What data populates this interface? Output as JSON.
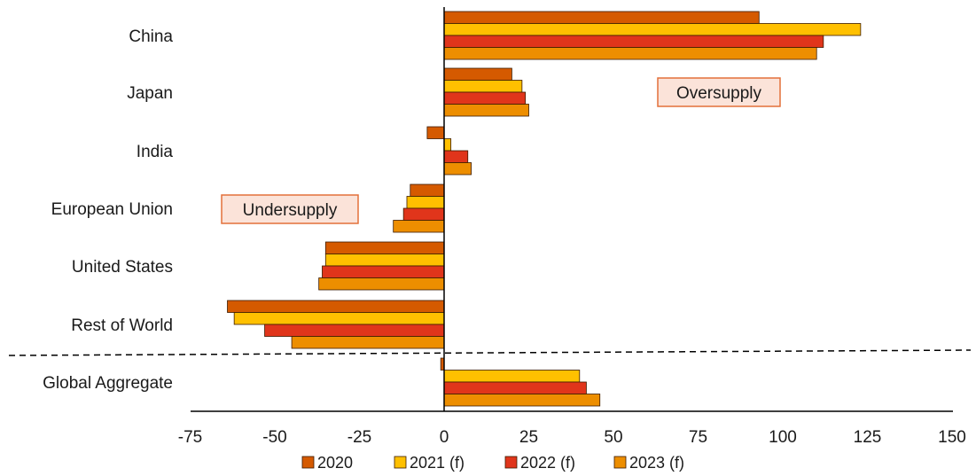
{
  "chart_data": {
    "type": "bar",
    "orientation": "horizontal",
    "categories": [
      "China",
      "Japan",
      "India",
      "European Union",
      "United States",
      "Rest of World",
      "Global Aggregate"
    ],
    "series": [
      {
        "name": "2020",
        "color": "#d55a00",
        "values": [
          93,
          20,
          -5,
          -10,
          -35,
          -64,
          -1
        ]
      },
      {
        "name": "2021 (f)",
        "color": "#ffc000",
        "values": [
          123,
          23,
          2,
          -11,
          -35,
          -62,
          40
        ]
      },
      {
        "name": "2022 (f)",
        "color": "#e0351b",
        "values": [
          112,
          24,
          7,
          -12,
          -36,
          -53,
          42
        ]
      },
      {
        "name": "2023 (f)",
        "color": "#ed8e00",
        "values": [
          110,
          25,
          8,
          -15,
          -37,
          -45,
          46
        ]
      }
    ],
    "xlim": [
      -75,
      150
    ],
    "xticks": [
      "-75",
      "-50",
      "-25",
      "0",
      "25",
      "50",
      "75",
      "100",
      "125",
      "150"
    ],
    "grid": false,
    "legend_position": "bottom",
    "annotations": [
      {
        "text": "Oversupply",
        "fill": "#fbe3d9",
        "stroke": "#e3703a"
      },
      {
        "text": "Undersupply",
        "fill": "#fbe3d9",
        "stroke": "#e3703a"
      }
    ]
  }
}
